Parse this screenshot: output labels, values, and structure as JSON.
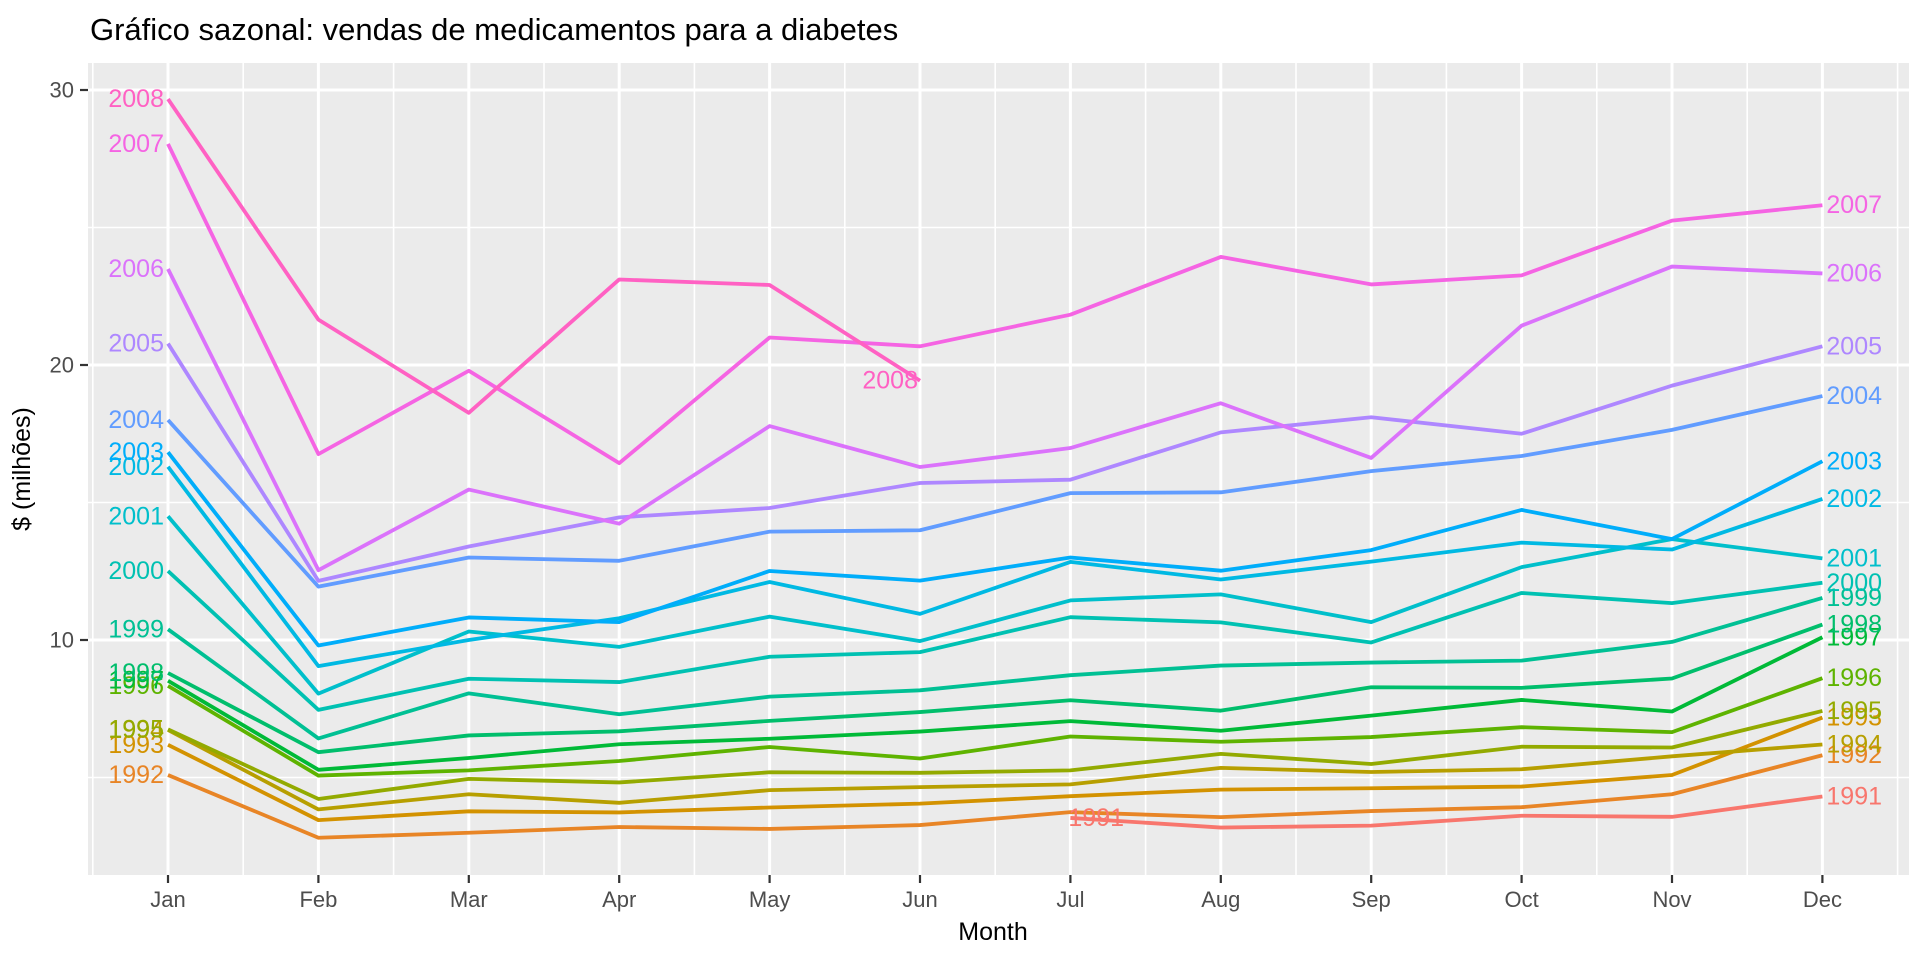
{
  "chart_data": {
    "type": "line",
    "title": "Gráfico sazonal: vendas de medicamentos para a diabetes",
    "xlabel": "Month",
    "ylabel": "$ (milhões)",
    "x_tick_labels": [
      "Jan",
      "Feb",
      "Mar",
      "Apr",
      "May",
      "Jun",
      "Jul",
      "Aug",
      "Sep",
      "Oct",
      "Nov",
      "Dec"
    ],
    "y_tick_values": [
      10,
      20,
      30
    ],
    "y_minor_values": [
      5,
      15,
      25
    ],
    "ylim": [
      1.45,
      31.0
    ],
    "grid": true,
    "legend_position": "none",
    "colors": {
      "panel_bg": "#EBEBEB",
      "grid": "#FFFFFF",
      "tick_mark": "#333333",
      "axis_text": "#4D4D4D",
      "title_text": "#000000"
    },
    "series": [
      {
        "name": "1991",
        "color": "#F8766D",
        "start_month": 7,
        "values": [
          3.53,
          3.18,
          3.25,
          3.61,
          3.57,
          4.31
        ]
      },
      {
        "name": "1992",
        "color": "#E88526",
        "start_month": 1,
        "values": [
          5.09,
          2.81,
          2.99,
          3.2,
          3.13,
          3.27,
          3.74,
          3.56,
          3.78,
          3.92,
          4.39,
          5.81
        ]
      },
      {
        "name": "1993",
        "color": "#D39200",
        "start_month": 1,
        "values": [
          6.19,
          3.45,
          3.77,
          3.73,
          3.91,
          4.05,
          4.32,
          4.56,
          4.61,
          4.67,
          5.09,
          7.18
        ]
      },
      {
        "name": "1994",
        "color": "#B79F00",
        "start_month": 1,
        "values": [
          6.73,
          3.84,
          4.39,
          4.08,
          4.54,
          4.65,
          4.75,
          5.35,
          5.2,
          5.3,
          5.77,
          6.2
        ]
      },
      {
        "name": "1995",
        "color": "#93AA00",
        "start_month": 1,
        "values": [
          6.75,
          4.22,
          4.95,
          4.82,
          5.19,
          5.17,
          5.26,
          5.86,
          5.49,
          6.12,
          6.09,
          7.42
        ]
      },
      {
        "name": "1996",
        "color": "#5EB300",
        "start_month": 1,
        "values": [
          8.33,
          5.07,
          5.26,
          5.6,
          6.11,
          5.69,
          6.49,
          6.3,
          6.47,
          6.83,
          6.65,
          8.61
        ]
      },
      {
        "name": "1997",
        "color": "#00BA38",
        "start_month": 1,
        "values": [
          8.52,
          5.28,
          5.71,
          6.21,
          6.41,
          6.67,
          7.05,
          6.7,
          7.25,
          7.82,
          7.4,
          10.1
        ]
      },
      {
        "name": "1998",
        "color": "#00BE6C",
        "start_month": 1,
        "values": [
          8.8,
          5.92,
          6.53,
          6.68,
          7.06,
          7.38,
          7.81,
          7.43,
          8.28,
          8.26,
          8.6,
          10.56
        ]
      },
      {
        "name": "1999",
        "color": "#00C094",
        "start_month": 1,
        "values": [
          10.39,
          6.42,
          8.06,
          7.3,
          7.94,
          8.17,
          8.72,
          9.07,
          9.18,
          9.25,
          9.93,
          11.53
        ]
      },
      {
        "name": "2000",
        "color": "#00C1B2",
        "start_month": 1,
        "values": [
          12.51,
          7.46,
          8.59,
          8.47,
          9.39,
          9.56,
          10.83,
          10.64,
          9.91,
          11.71,
          11.34,
          12.08
        ]
      },
      {
        "name": "2001",
        "color": "#00BFCB",
        "start_month": 1,
        "values": [
          14.5,
          8.05,
          10.31,
          9.75,
          10.85,
          9.96,
          11.44,
          11.66,
          10.65,
          12.65,
          13.67,
          12.97
        ]
      },
      {
        "name": "2002",
        "color": "#00B9E3",
        "start_month": 1,
        "values": [
          16.3,
          9.05,
          10.0,
          10.79,
          12.11,
          10.95,
          12.84,
          12.2,
          12.85,
          13.54,
          13.29,
          15.13
        ]
      },
      {
        "name": "2003",
        "color": "#00ADFA",
        "start_month": 1,
        "values": [
          16.83,
          9.8,
          10.82,
          10.65,
          12.51,
          12.16,
          13.0,
          12.52,
          13.27,
          14.73,
          13.67,
          16.5
        ]
      },
      {
        "name": "2004",
        "color": "#619CFF",
        "start_month": 1,
        "values": [
          18.0,
          11.94,
          13.0,
          12.88,
          13.94,
          13.99,
          15.34,
          15.37,
          16.14,
          16.69,
          17.64,
          18.87
        ]
      },
      {
        "name": "2005",
        "color": "#AE87FF",
        "start_month": 1,
        "values": [
          20.78,
          12.15,
          13.4,
          14.46,
          14.8,
          15.71,
          15.83,
          17.55,
          18.1,
          17.5,
          19.25,
          20.68
        ]
      },
      {
        "name": "2006",
        "color": "#DB72FB",
        "start_month": 1,
        "values": [
          23.49,
          12.54,
          15.47,
          14.23,
          17.78,
          16.29,
          16.98,
          18.61,
          16.62,
          21.43,
          23.58,
          23.33
        ]
      },
      {
        "name": "2007",
        "color": "#F564E3",
        "start_month": 1,
        "values": [
          28.04,
          16.76,
          19.79,
          16.43,
          21.0,
          20.68,
          21.83,
          23.93,
          22.93,
          23.26,
          25.25,
          25.81
        ]
      },
      {
        "name": "2008",
        "color": "#FF61C3",
        "start_month": 1,
        "values": [
          29.67,
          21.65,
          18.26,
          23.11,
          22.91,
          19.43
        ]
      }
    ]
  }
}
